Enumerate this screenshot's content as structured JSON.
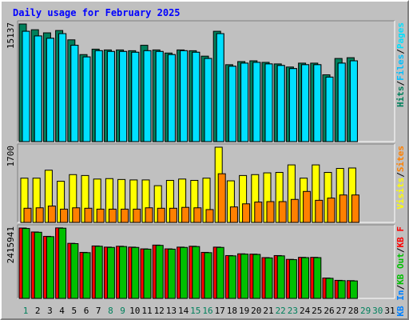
{
  "title": "Daily usage for February 2025",
  "colors": {
    "hits": "#00805c",
    "files": "#00c0ff",
    "pages": "#00e0ff",
    "visits": "#ffff00",
    "sites": "#ff8000",
    "kbin": "#0080ff",
    "kbout": "#00c000",
    "kbf": "#ff0000",
    "frame": "#c0c0c0",
    "title": "#0000ff",
    "weekend_day": "#00805c",
    "weekday": "#000000"
  },
  "chart_data": [
    {
      "type": "bar",
      "name": "pages-files-hits",
      "ymax_label": "15137",
      "ylim": [
        0,
        15137
      ],
      "legend": [
        {
          "text": "Hits",
          "color": "#00805c"
        },
        {
          "text": "/",
          "color": "#000000"
        },
        {
          "text": "Files",
          "color": "#00c0ff"
        },
        {
          "text": "/",
          "color": "#000000"
        },
        {
          "text": "Pages",
          "color": "#00e0ff"
        }
      ],
      "series": [
        {
          "name": "Hits",
          "color": "#00805c",
          "values": [
            15137,
            14400,
            14000,
            14300,
            13100,
            11200,
            11900,
            11800,
            11800,
            11700,
            12400,
            11800,
            11400,
            11800,
            11700,
            11000,
            14200,
            9900,
            10300,
            10400,
            10200,
            10000,
            9600,
            10100,
            10100,
            8600,
            10700,
            10800
          ]
        },
        {
          "name": "Files",
          "color": "#00c0ff",
          "values": [
            14200,
            13600,
            13300,
            13900,
            12400,
            10900,
            11700,
            11600,
            11600,
            11500,
            11700,
            11600,
            11200,
            11700,
            11500,
            10700,
            13900,
            9700,
            10100,
            10200,
            10000,
            9800,
            9400,
            9900,
            9900,
            8300,
            10100,
            10400
          ]
        },
        {
          "name": "Pages",
          "color": "#00e0ff",
          "values": [
            14200,
            13600,
            13300,
            13900,
            12400,
            10900,
            11700,
            11600,
            11600,
            11500,
            11700,
            11600,
            11200,
            11700,
            11500,
            10700,
            13900,
            9700,
            10100,
            10200,
            10000,
            9800,
            9400,
            9900,
            9900,
            8300,
            10100,
            10400
          ]
        }
      ]
    },
    {
      "type": "bar",
      "name": "visits-sites",
      "ymax_label": "1700",
      "ylim": [
        0,
        1700
      ],
      "legend": [
        {
          "text": "Visits",
          "color": "#ffff00"
        },
        {
          "text": "/",
          "color": "#000000"
        },
        {
          "text": "Sites",
          "color": "#ff8000"
        }
      ],
      "series": [
        {
          "name": "Visits",
          "color": "#ffff00",
          "values": [
            1000,
            1000,
            1180,
            930,
            1080,
            1060,
            980,
            990,
            970,
            960,
            960,
            830,
            950,
            980,
            950,
            1000,
            1700,
            940,
            1060,
            1080,
            1120,
            1130,
            1300,
            1000,
            1300,
            1130,
            1220,
            1230
          ]
        },
        {
          "name": "Sites",
          "color": "#ff8000",
          "values": [
            320,
            330,
            370,
            300,
            330,
            320,
            300,
            300,
            300,
            300,
            330,
            320,
            320,
            340,
            330,
            290,
            1100,
            350,
            420,
            460,
            470,
            470,
            520,
            700,
            500,
            550,
            620,
            620
          ]
        }
      ]
    },
    {
      "type": "bar",
      "name": "kbf-kbin-kbout",
      "ymax_label": "2415941",
      "ylim": [
        0,
        2415941
      ],
      "legend": [
        {
          "text": "KB In",
          "color": "#0080ff"
        },
        {
          "text": "/",
          "color": "#000000"
        },
        {
          "text": "KB Out",
          "color": "#00c000"
        },
        {
          "text": "/",
          "color": "#000000"
        },
        {
          "text": "KB F",
          "color": "#ff0000"
        }
      ],
      "series": [
        {
          "name": "KB F",
          "color": "#ff0000",
          "values": [
            2415941,
            2280000,
            2130000,
            2420000,
            1890000,
            1580000,
            1800000,
            1760000,
            1790000,
            1760000,
            1700000,
            1830000,
            1700000,
            1760000,
            1790000,
            1580000,
            1760000,
            1470000,
            1530000,
            1520000,
            1400000,
            1470000,
            1340000,
            1410000,
            1410000,
            700000,
            620000,
            610000
          ]
        },
        {
          "name": "KB In",
          "color": "#0080ff",
          "values": [
            0,
            0,
            0,
            0,
            0,
            0,
            0,
            0,
            0,
            0,
            0,
            0,
            0,
            0,
            0,
            0,
            0,
            0,
            0,
            0,
            0,
            0,
            0,
            0,
            0,
            0,
            0,
            0
          ]
        },
        {
          "name": "KB Out",
          "color": "#00c000",
          "values": [
            2400000,
            2270000,
            2120000,
            2410000,
            1880000,
            1570000,
            1790000,
            1750000,
            1780000,
            1750000,
            1690000,
            1820000,
            1690000,
            1750000,
            1780000,
            1570000,
            1750000,
            1460000,
            1520000,
            1510000,
            1390000,
            1460000,
            1330000,
            1400000,
            1400000,
            690000,
            610000,
            600000
          ]
        }
      ]
    }
  ],
  "days": [
    {
      "label": "1",
      "weekend": true
    },
    {
      "label": "2",
      "weekend": false
    },
    {
      "label": "3",
      "weekend": false
    },
    {
      "label": "4",
      "weekend": false
    },
    {
      "label": "5",
      "weekend": false
    },
    {
      "label": "6",
      "weekend": false
    },
    {
      "label": "7",
      "weekend": false
    },
    {
      "label": "8",
      "weekend": true
    },
    {
      "label": "9",
      "weekend": true
    },
    {
      "label": "10",
      "weekend": false
    },
    {
      "label": "11",
      "weekend": false
    },
    {
      "label": "12",
      "weekend": false
    },
    {
      "label": "13",
      "weekend": false
    },
    {
      "label": "14",
      "weekend": false
    },
    {
      "label": "15",
      "weekend": true
    },
    {
      "label": "16",
      "weekend": true
    },
    {
      "label": "17",
      "weekend": false
    },
    {
      "label": "18",
      "weekend": false
    },
    {
      "label": "19",
      "weekend": false
    },
    {
      "label": "20",
      "weekend": false
    },
    {
      "label": "21",
      "weekend": false
    },
    {
      "label": "22",
      "weekend": true
    },
    {
      "label": "23",
      "weekend": true
    },
    {
      "label": "24",
      "weekend": false
    },
    {
      "label": "25",
      "weekend": false
    },
    {
      "label": "26",
      "weekend": false
    },
    {
      "label": "27",
      "weekend": false
    },
    {
      "label": "28",
      "weekend": false
    },
    {
      "label": "29",
      "weekend": true
    },
    {
      "label": "30",
      "weekend": true
    },
    {
      "label": "31",
      "weekend": false
    }
  ]
}
